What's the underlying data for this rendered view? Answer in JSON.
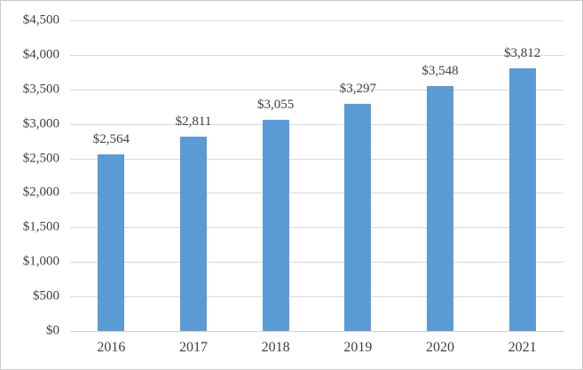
{
  "chart_data": {
    "type": "bar",
    "title": "",
    "xlabel": "",
    "ylabel": "",
    "categories": [
      "2016",
      "2017",
      "2018",
      "2019",
      "2020",
      "2021"
    ],
    "values": [
      2564,
      2811,
      3055,
      3297,
      3548,
      3812
    ],
    "data_labels": [
      "$2,564",
      "$2,811",
      "$3,055",
      "$3,297",
      "$3,548",
      "$3,812"
    ],
    "y_ticks": {
      "values": [
        0,
        500,
        1000,
        1500,
        2000,
        2500,
        3000,
        3500,
        4000,
        4500
      ],
      "labels": [
        "$0",
        "$500",
        "$1,000",
        "$1,500",
        "$2,000",
        "$2,500",
        "$3,000",
        "$3,500",
        "$4,000",
        "$4,500"
      ]
    },
    "ylim": [
      0,
      4500
    ],
    "grid": true,
    "legend_position": "none",
    "colors": {
      "bar": "#5B9BD5",
      "gridline": "#D9D9D9",
      "axis_line": "#D0D0D0",
      "text": "#404040",
      "chart_border": "#C9C9C9",
      "background": "#FFFFFF"
    }
  }
}
